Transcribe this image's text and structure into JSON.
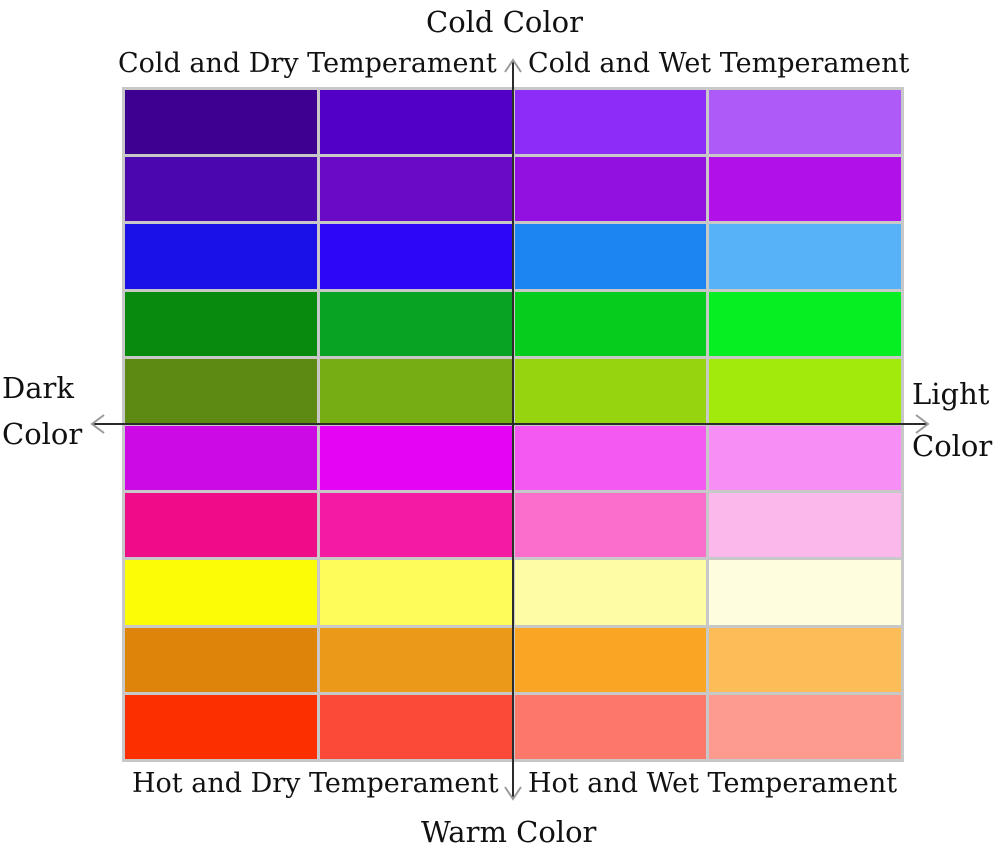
{
  "axes": {
    "top": "Cold Color",
    "bottom": "Warm Color",
    "left_line1": "Dark",
    "left_line2": "Color",
    "right_line1": "Light",
    "right_line2": "Color"
  },
  "quadrants": {
    "top_left": "Cold and Dry Temperament",
    "top_right": "Cold and Wet Temperament",
    "bottom_left": "Hot and Dry Temperament",
    "bottom_right": "Hot and Wet Temperament"
  },
  "grid": {
    "columns": 4,
    "rows": [
      [
        "#3d0091",
        "#5200c8",
        "#8c2cf7",
        "#ae5af8"
      ],
      [
        "#4b06b0",
        "#6a0ac7",
        "#9210e0",
        "#b110e8"
      ],
      [
        "#1a10e8",
        "#2d05f7",
        "#1d85f2",
        "#58b2f7"
      ],
      [
        "#088a0e",
        "#08a322",
        "#06cc1e",
        "#06ef22"
      ],
      [
        "#5c8a12",
        "#76ad12",
        "#95d40f",
        "#a2ea0b"
      ],
      [
        "#cc0ae4",
        "#e505f4",
        "#f45af2",
        "#f68ef6"
      ],
      [
        "#ee0c88",
        "#f51aa2",
        "#fc6ecc",
        "#fbb8ea"
      ],
      [
        "#fcfc06",
        "#fdfc5a",
        "#fefda6",
        "#fefede"
      ],
      [
        "#de8509",
        "#ea9a18",
        "#faa624",
        "#fcbd58"
      ],
      [
        "#fc2f00",
        "#fb4b38",
        "#fc786a",
        "#fc9b8e"
      ]
    ]
  }
}
